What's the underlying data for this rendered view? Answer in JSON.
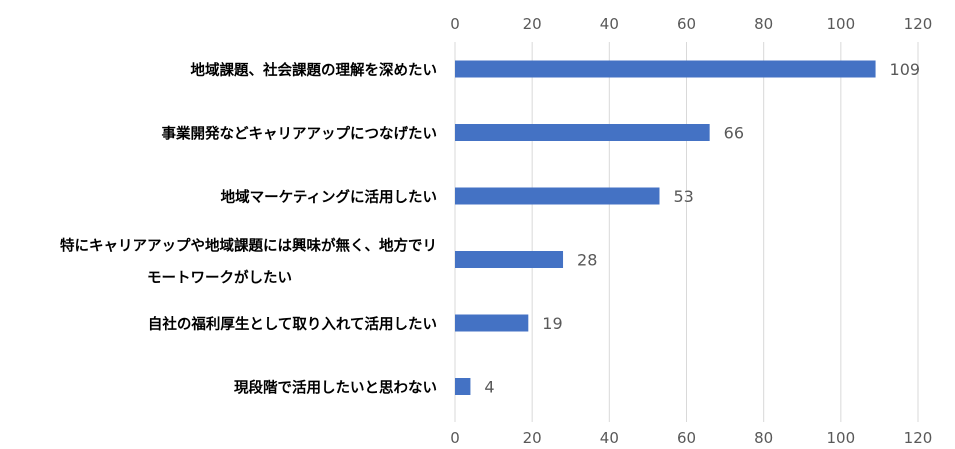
{
  "chart_data": {
    "type": "bar",
    "orientation": "horizontal",
    "title": "",
    "xlabel": "",
    "ylabel": "",
    "categories": [
      [
        "地域課題、社会課題の理解を深めたい"
      ],
      [
        "事業開発などキャリアアップにつなげたい"
      ],
      [
        "地域マーケティングに活用したい"
      ],
      [
        "特にキャリアアップや地域課題には興味が無く、地方でリ",
        "モートワークがしたい"
      ],
      [
        "自社の福利厚生として取り入れて活用したい"
      ],
      [
        "現段階で活用したいと思わない"
      ]
    ],
    "values": [
      109,
      66,
      53,
      28,
      19,
      4
    ],
    "xlim": [
      0,
      120
    ],
    "xticks": [
      0,
      20,
      40,
      60,
      80,
      100,
      120
    ],
    "grid": true,
    "legend": "none",
    "bar_color": "#4472c4"
  }
}
